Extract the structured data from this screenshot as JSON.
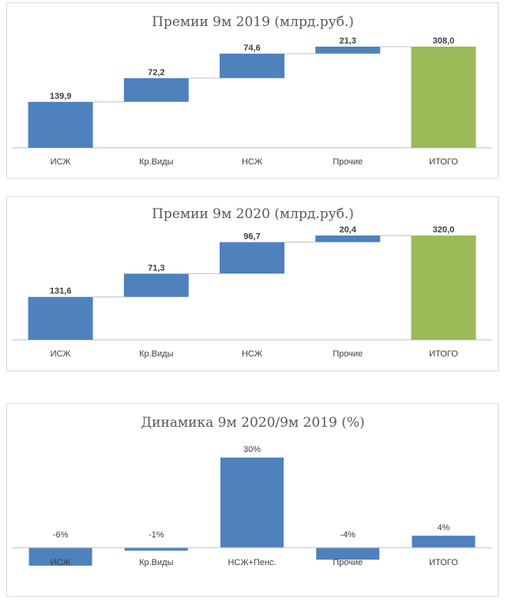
{
  "colors": {
    "bar": "#4f81bd",
    "total": "#9bbb59",
    "axis": "#bfbfbf",
    "connector": "#bfbfbf"
  },
  "chart_data": [
    {
      "type": "bar",
      "subtype": "waterfall",
      "title": "Премии 9м 2019 (млрд.руб.)",
      "categories": [
        "ИСЖ",
        "Кр.Виды",
        "НСЖ",
        "Прочие",
        "ИТОГО"
      ],
      "values": [
        139.9,
        72.2,
        74.6,
        21.3,
        308.0
      ],
      "labels": [
        "139,9",
        "72,2",
        "74,6",
        "21,3",
        "308,0"
      ],
      "total_index": 4,
      "ylim": [
        0,
        308
      ]
    },
    {
      "type": "bar",
      "subtype": "waterfall",
      "title": "Премии 9м 2020 (млрд.руб.)",
      "categories": [
        "ИСЖ",
        "Кр.Виды",
        "НСЖ",
        "Прочие",
        "ИТОГО"
      ],
      "values": [
        131.6,
        71.3,
        96.7,
        20.4,
        320.0
      ],
      "labels": [
        "131,6",
        "71,3",
        "96,7",
        "20,4",
        "320,0"
      ],
      "total_index": 4,
      "ylim": [
        0,
        320
      ]
    },
    {
      "type": "bar",
      "title": "Динамика 9м 2020/9м 2019 (%)",
      "categories": [
        "ИСЖ",
        "Кр.Виды",
        "НСЖ+Пенс.",
        "Прочие",
        "ИТОГО"
      ],
      "values": [
        -6,
        -1,
        30,
        -4,
        4
      ],
      "labels": [
        "-6%",
        "-1%",
        "30%",
        "-4%",
        "4%"
      ],
      "ylim": [
        -6,
        30
      ]
    }
  ]
}
